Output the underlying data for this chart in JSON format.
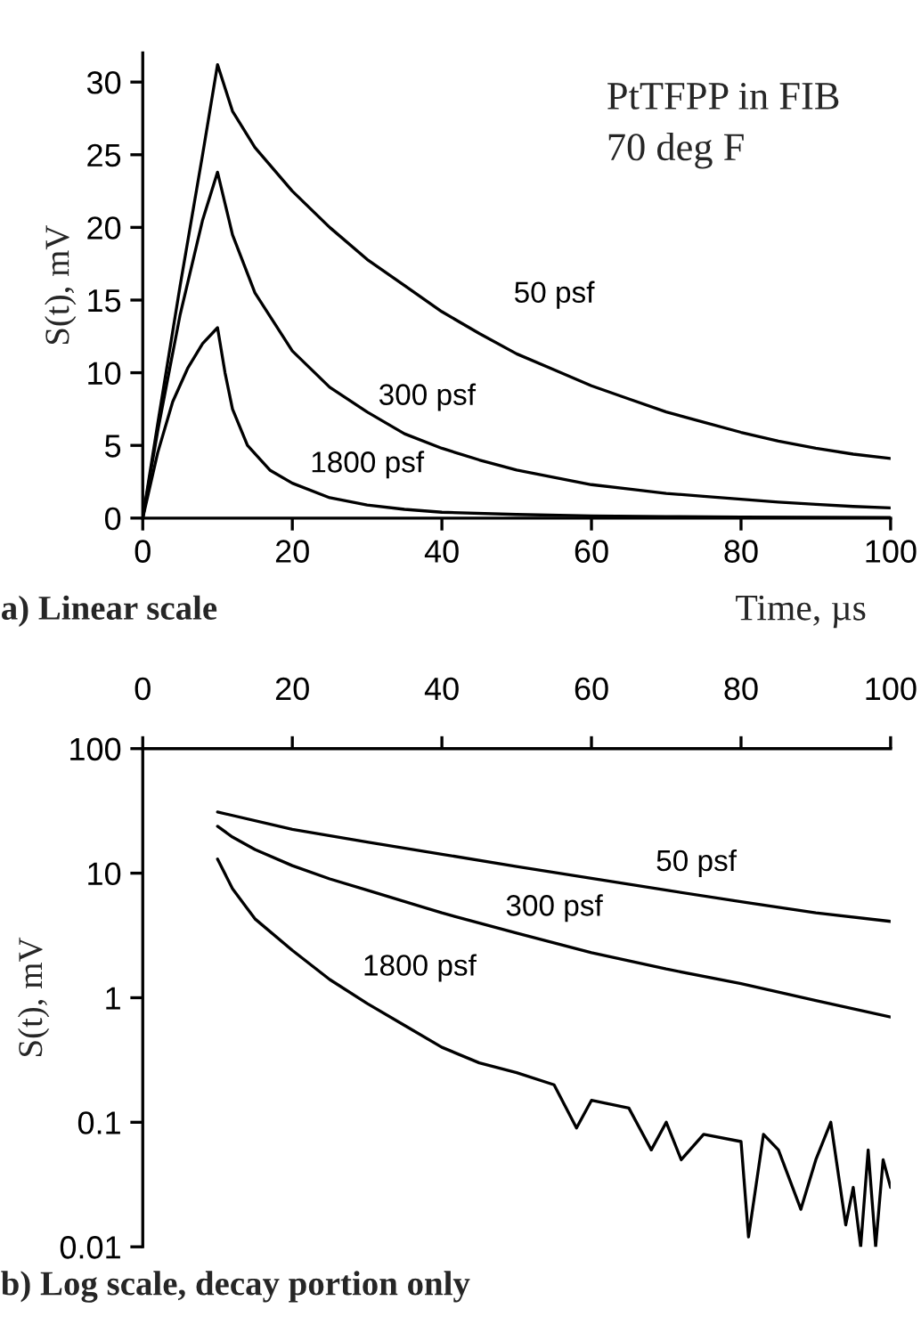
{
  "chart_data": [
    {
      "type": "line",
      "xlabel": "Time, µs",
      "ylabel": "S(t), mV",
      "xlim": [
        0,
        100
      ],
      "xticks": [
        0,
        20,
        40,
        60,
        80,
        100
      ],
      "ylim": [
        0,
        32
      ],
      "yticks": [
        0,
        5,
        10,
        15,
        20,
        25,
        30
      ],
      "grid": false,
      "legend": false,
      "marker": "none",
      "line_style": "solid",
      "annotations": [
        "PtTFPP in FIB",
        "70 deg F",
        "a) Linear scale"
      ],
      "series": [
        {
          "name": "50 psf",
          "color": "#000000",
          "x": [
            0,
            2,
            5,
            8,
            10,
            12,
            15,
            20,
            25,
            30,
            35,
            40,
            45,
            50,
            55,
            60,
            65,
            70,
            75,
            80,
            85,
            90,
            95,
            100
          ],
          "values": [
            0,
            6.5,
            16,
            25,
            31.2,
            28,
            25.5,
            22.5,
            20,
            17.8,
            16,
            14.2,
            12.7,
            11.3,
            10.2,
            9.1,
            8.2,
            7.3,
            6.6,
            5.9,
            5.3,
            4.8,
            4.4,
            4.1
          ]
        },
        {
          "name": "300 psf",
          "color": "#000000",
          "x": [
            0,
            2,
            5,
            8,
            10,
            12,
            15,
            20,
            25,
            30,
            35,
            40,
            45,
            50,
            55,
            60,
            65,
            70,
            75,
            80,
            85,
            90,
            95,
            100
          ],
          "values": [
            0,
            6,
            14,
            20.5,
            23.8,
            19.5,
            15.5,
            11.5,
            9,
            7.3,
            5.8,
            4.8,
            4,
            3.3,
            2.8,
            2.3,
            2,
            1.7,
            1.5,
            1.3,
            1.1,
            0.95,
            0.8,
            0.7
          ]
        },
        {
          "name": "1800 psf",
          "color": "#000000",
          "x": [
            0,
            2,
            4,
            6,
            8,
            10,
            11,
            12,
            14,
            17,
            20,
            25,
            30,
            35,
            40,
            50,
            60,
            70,
            80,
            90,
            100
          ],
          "values": [
            0,
            4.5,
            8,
            10.3,
            12,
            13.1,
            10,
            7.5,
            5,
            3.3,
            2.4,
            1.4,
            0.9,
            0.6,
            0.4,
            0.25,
            0.15,
            0.1,
            0.07,
            0.05,
            0.04
          ]
        }
      ]
    },
    {
      "type": "line",
      "ylabel": "S(t), mV",
      "xlim": [
        0,
        100
      ],
      "xticks": [
        0,
        20,
        40,
        60,
        80,
        100
      ],
      "log": "y",
      "ylim": [
        0.01,
        100
      ],
      "yticks": [
        0.01,
        0.1,
        1,
        10,
        100
      ],
      "grid": false,
      "legend": false,
      "marker": "none",
      "line_style": "solid",
      "annotations": [
        "b) Log scale, decay portion only"
      ],
      "series": [
        {
          "name": "50 psf",
          "color": "#000000",
          "x": [
            10,
            20,
            30,
            40,
            50,
            60,
            70,
            80,
            90,
            100
          ],
          "values": [
            31,
            22.5,
            17.8,
            14.2,
            11.3,
            9.1,
            7.3,
            5.9,
            4.8,
            4.1
          ]
        },
        {
          "name": "300 psf",
          "color": "#000000",
          "x": [
            10,
            12,
            15,
            20,
            25,
            30,
            40,
            50,
            60,
            70,
            80,
            90,
            100
          ],
          "values": [
            23.8,
            19.5,
            15.5,
            11.5,
            9,
            7.3,
            4.8,
            3.3,
            2.3,
            1.7,
            1.3,
            0.95,
            0.7
          ]
        },
        {
          "name": "1800 psf",
          "color": "#000000",
          "x": [
            10,
            12,
            15,
            20,
            25,
            30,
            35,
            40,
            45,
            50,
            55,
            58,
            60,
            65,
            68,
            70,
            72,
            75,
            80,
            81,
            83,
            85,
            88,
            90,
            92,
            94,
            95,
            96,
            97,
            98,
            99,
            100
          ],
          "values": [
            13,
            7.5,
            4.3,
            2.4,
            1.4,
            0.9,
            0.6,
            0.4,
            0.3,
            0.25,
            0.2,
            0.09,
            0.15,
            0.13,
            0.06,
            0.1,
            0.05,
            0.08,
            0.07,
            0.012,
            0.08,
            0.06,
            0.02,
            0.05,
            0.1,
            0.015,
            0.03,
            0.01,
            0.06,
            0.01,
            0.05,
            0.03
          ]
        }
      ]
    }
  ]
}
